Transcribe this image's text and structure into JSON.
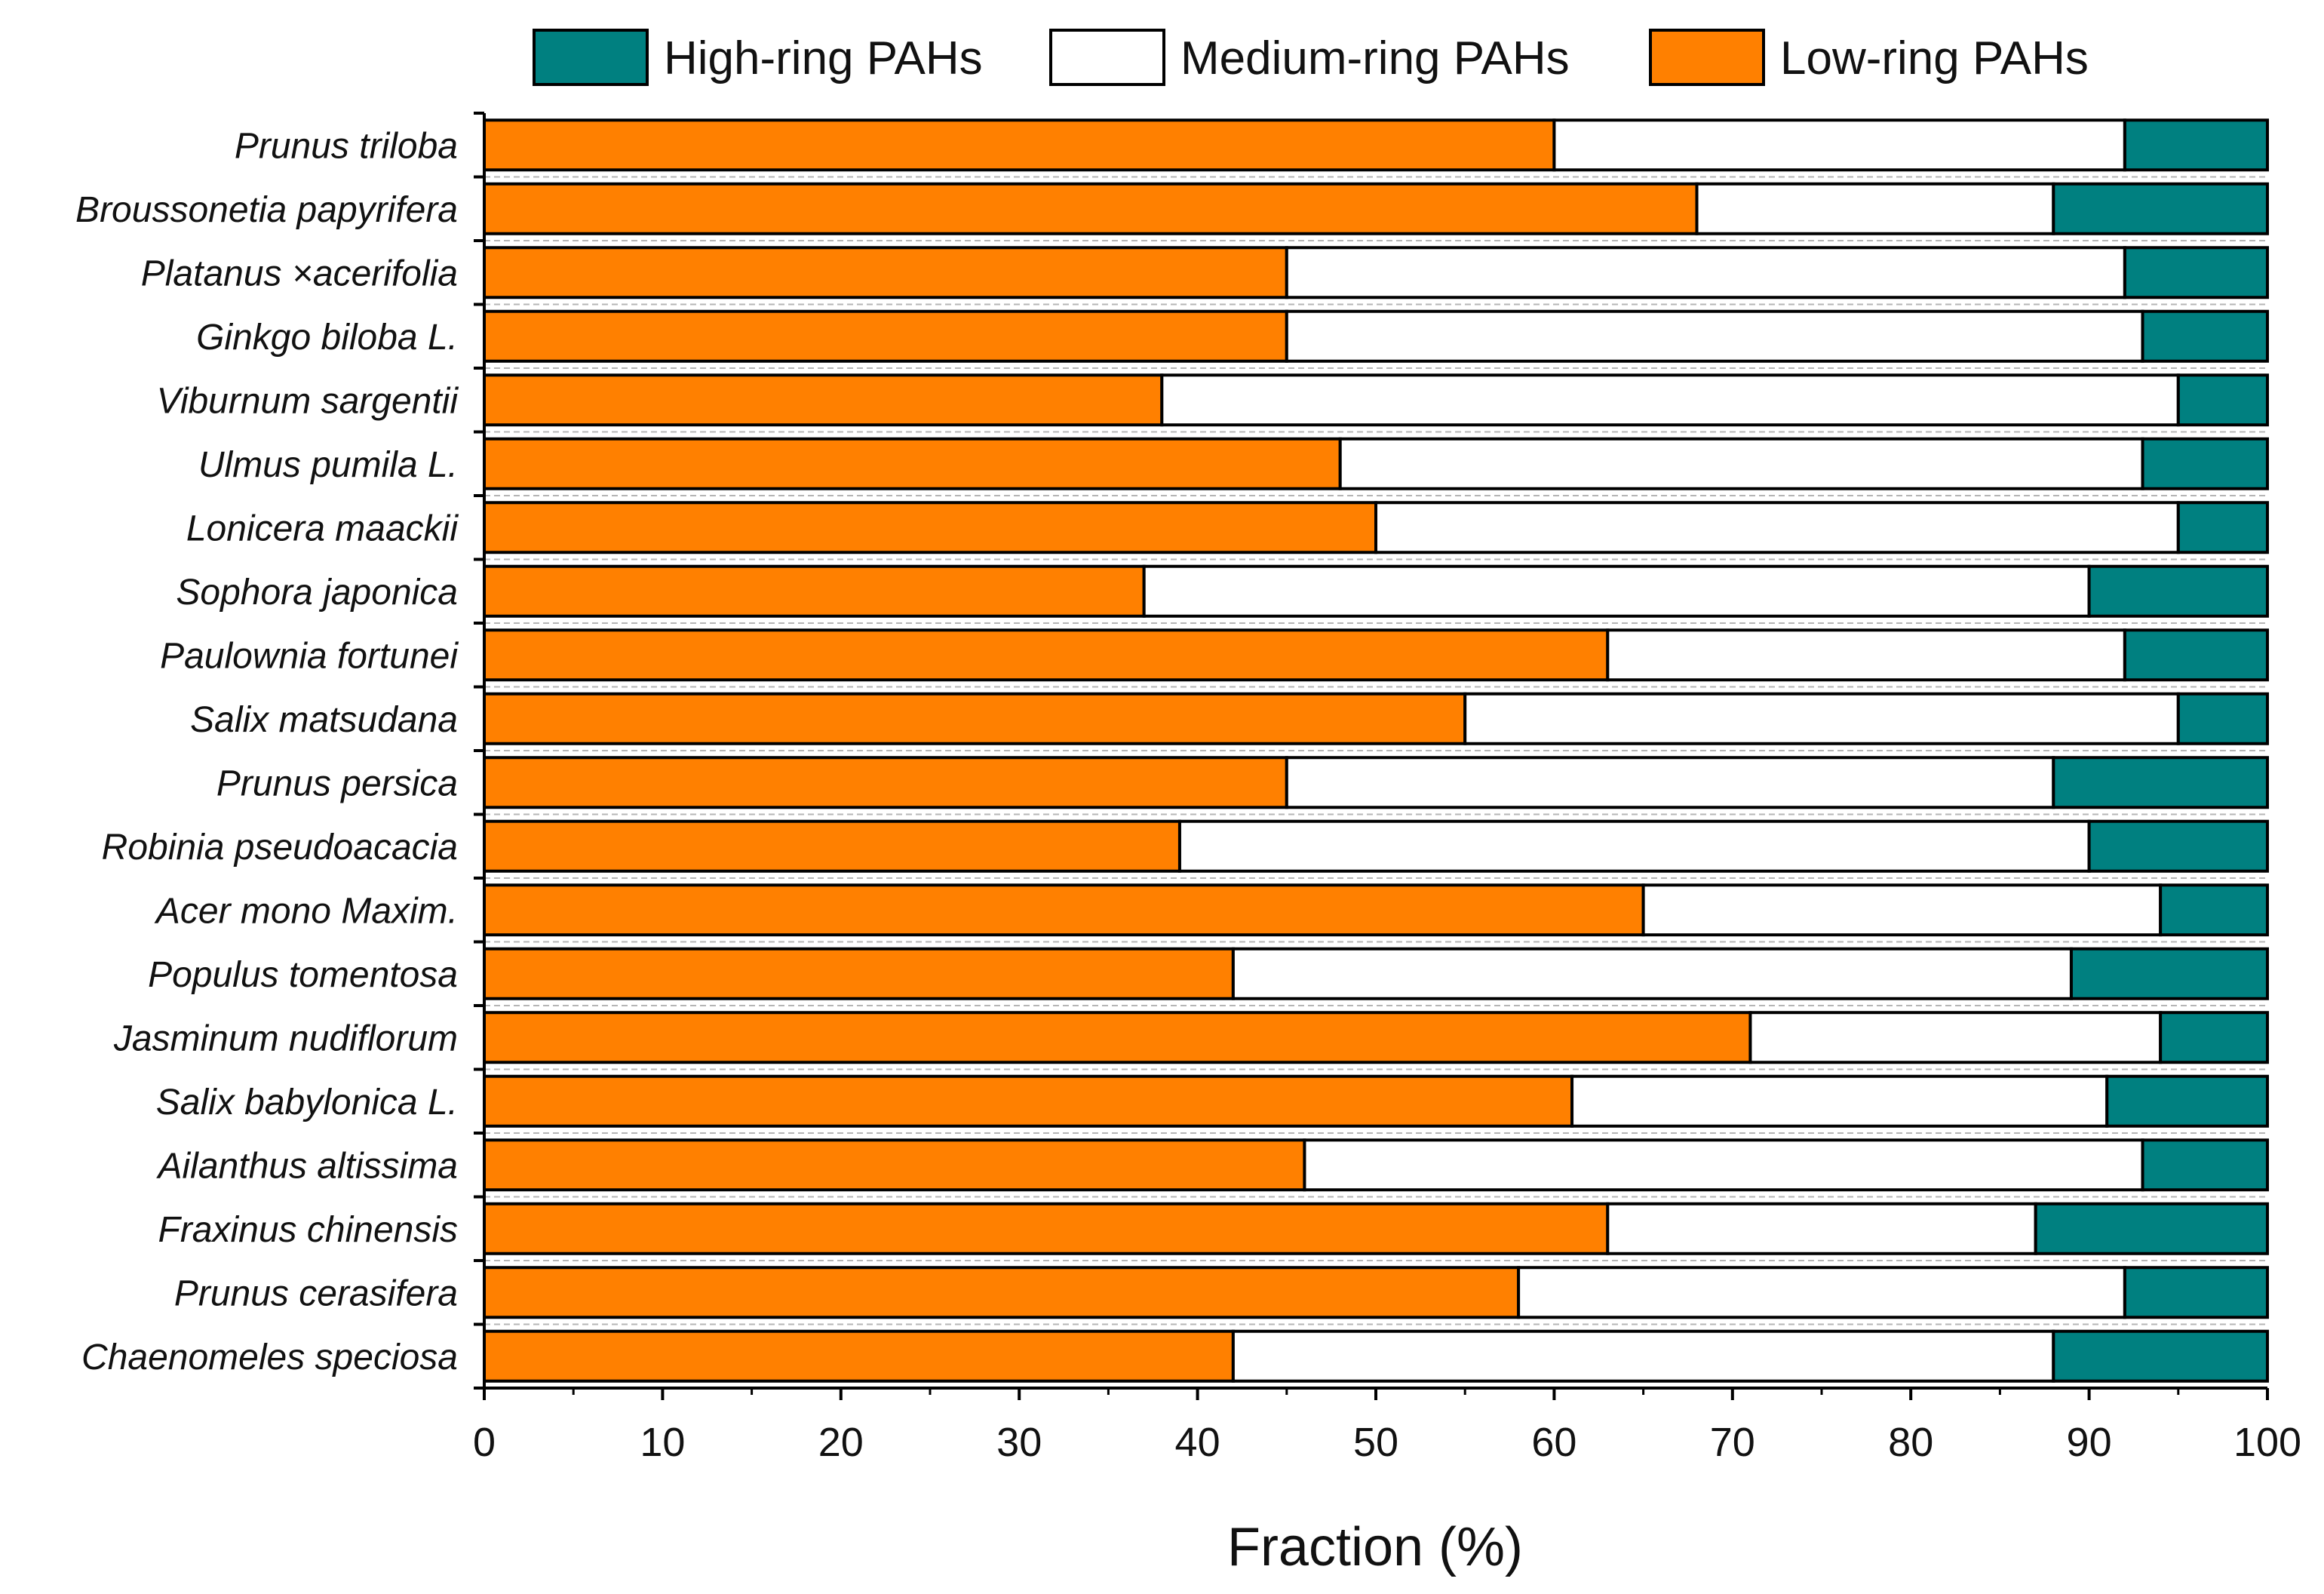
{
  "chart_data": {
    "type": "bar",
    "orientation": "horizontal",
    "stacked": true,
    "title": "",
    "xlabel": "Fraction (%)",
    "ylabel": "",
    "xlim": [
      0,
      100
    ],
    "xticks": [
      "0",
      "10",
      "20",
      "30",
      "40",
      "50",
      "60",
      "70",
      "80",
      "90",
      "100"
    ],
    "categories": [
      "Prunus triloba",
      "Broussonetia papyrifera",
      "Platanus ×acerifolia",
      "Ginkgo biloba L.",
      "Viburnum sargentii",
      "Ulmus pumila L.",
      "Lonicera maackii",
      "Sophora japonica",
      "Paulownia fortunei",
      "Salix matsudana",
      "Prunus persica",
      "Robinia pseudoacacia",
      "Acer mono Maxim.",
      "Populus tomentosa",
      "Jasminum nudiflorum",
      "Salix babylonica L.",
      "Ailanthus altissima",
      "Fraxinus chinensis",
      "Prunus cerasifera",
      "Chaenomeles speciosa"
    ],
    "series": [
      {
        "name": "Low-ring PAHs",
        "color": "#FF8000",
        "values": [
          60,
          68,
          45,
          45,
          38,
          48,
          50,
          37,
          63,
          55,
          45,
          39,
          65,
          42,
          71,
          61,
          46,
          63,
          58,
          42
        ]
      },
      {
        "name": "Medium-ring PAHs",
        "color": "#FFFFFF",
        "values": [
          32,
          20,
          47,
          48,
          57,
          45,
          45,
          53,
          29,
          40,
          43,
          51,
          29,
          47,
          23,
          30,
          47,
          24,
          34,
          46
        ]
      },
      {
        "name": "High-ring PAHs",
        "color": "#008080",
        "values": [
          8,
          12,
          8,
          7,
          5,
          7,
          5,
          10,
          8,
          5,
          12,
          10,
          6,
          11,
          6,
          9,
          7,
          13,
          8,
          12
        ]
      }
    ],
    "legend": {
      "position": "top",
      "order": [
        "High-ring PAHs",
        "Medium-ring PAHs",
        "Low-ring PAHs"
      ]
    }
  }
}
